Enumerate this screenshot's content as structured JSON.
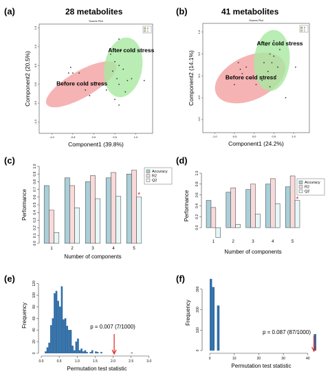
{
  "charts": [
    {
      "id": "a",
      "panel_label": "(a)",
      "title": "28 metabolites",
      "chart_data": {
        "type": "scatter",
        "plot_title": "Scores Plot",
        "xlabel": "Component1 (39.8%)",
        "ylabel": "Component2 (20.5%)",
        "xticks": [
          "-1.0",
          "-0.5",
          "0.0",
          "0.5",
          "1.0"
        ],
        "yticks": [
          "-1.0",
          "-0.5",
          "0.0",
          "0.5",
          "1.0",
          "1.5"
        ],
        "xlim": [
          -1.3,
          1.4
        ],
        "ylim": [
          -1.3,
          1.6
        ],
        "legend": [
          "0",
          "1"
        ],
        "groups": [
          {
            "name": "Before cold stress",
            "color": "#f4a0a0",
            "ellipse": {
              "cx": -0.3,
              "cy": 0.0,
              "rx": 0.95,
              "ry": 0.35,
              "angle": -30
            },
            "points": [
              [
                -0.55,
                0.45
              ],
              [
                -0.5,
                0.3
              ],
              [
                -0.35,
                0.3
              ],
              [
                -0.2,
                -0.15
              ],
              [
                -0.1,
                -0.3
              ],
              [
                0.05,
                0.05
              ],
              [
                0.3,
                -0.15
              ],
              [
                0.5,
                -0.4
              ],
              [
                0.6,
                -0.55
              ],
              [
                -0.6,
                0.3
              ]
            ]
          },
          {
            "name": "After cold stress",
            "color": "#a8e8a0",
            "ellipse": {
              "cx": 0.7,
              "cy": 0.45,
              "rx": 0.45,
              "ry": 0.8,
              "angle": 10
            },
            "points": [
              [
                0.4,
                0.8
              ],
              [
                0.5,
                0.6
              ],
              [
                0.6,
                0.5
              ],
              [
                0.7,
                0.4
              ],
              [
                0.8,
                0.1
              ],
              [
                0.9,
                0.15
              ],
              [
                0.6,
                0.0
              ],
              [
                0.55,
                0.15
              ],
              [
                0.75,
                -0.2
              ],
              [
                0.45,
                0.35
              ],
              [
                0.65,
                0.9
              ],
              [
                0.6,
                1.2
              ],
              [
                1.2,
                0.1
              ]
            ]
          }
        ]
      }
    },
    {
      "id": "b",
      "panel_label": "(b)",
      "title": "41 metabolites",
      "chart_data": {
        "type": "scatter",
        "plot_title": "Scores Plot",
        "xlabel": "Component1 (24.2%)",
        "ylabel": "Component2 (14.1%)",
        "xticks": [
          "-1.0",
          "-0.5",
          "0.0",
          "0.5",
          "1.0"
        ],
        "yticks": [
          "-1.0",
          "-0.5",
          "0.0",
          "0.5",
          "1.0"
        ],
        "xlim": [
          -1.3,
          1.4
        ],
        "ylim": [
          -1.3,
          1.2
        ],
        "legend": [
          "0",
          "1"
        ],
        "groups": [
          {
            "name": "Before cold stress",
            "color": "#f4a0a0",
            "ellipse": {
              "cx": -0.1,
              "cy": -0.05,
              "rx": 0.95,
              "ry": 0.5,
              "angle": -25
            },
            "points": [
              [
                -0.4,
                0.3
              ],
              [
                -0.35,
                0.15
              ],
              [
                -0.2,
                0.2
              ],
              [
                -0.1,
                -0.05
              ],
              [
                0.05,
                -0.2
              ],
              [
                -0.5,
                -0.2
              ],
              [
                0.2,
                -0.1
              ],
              [
                0.4,
                -0.25
              ],
              [
                0.8,
                -0.5
              ],
              [
                -0.3,
                0.05
              ]
            ]
          },
          {
            "name": "After cold stress",
            "color": "#a8e8a0",
            "ellipse": {
              "cx": 0.45,
              "cy": 0.35,
              "rx": 0.45,
              "ry": 0.7,
              "angle": 5
            },
            "points": [
              [
                0.3,
                0.7
              ],
              [
                0.4,
                0.5
              ],
              [
                0.5,
                0.45
              ],
              [
                0.45,
                0.3
              ],
              [
                0.6,
                0.2
              ],
              [
                0.35,
                0.1
              ],
              [
                0.55,
                0.0
              ],
              [
                0.65,
                0.6
              ],
              [
                0.5,
                0.8
              ],
              [
                1.05,
                0.2
              ],
              [
                0.25,
                0.3
              ]
            ]
          }
        ]
      }
    },
    {
      "id": "c",
      "panel_label": "(c)",
      "chart_data": {
        "type": "bar",
        "xlabel": "Number of components",
        "ylabel": "Performance",
        "categories": [
          "1",
          "2",
          "3",
          "4",
          "5"
        ],
        "ylim": [
          0,
          1.0
        ],
        "yticks": [
          "0.0",
          "0.1",
          "0.2",
          "0.3",
          "0.4",
          "0.5",
          "0.6",
          "0.7",
          "0.8",
          "0.9",
          "1.0"
        ],
        "series": [
          {
            "name": "Accuracy",
            "color": "#a9cfd8",
            "values": [
              0.75,
              0.85,
              0.8,
              0.85,
              0.9
            ]
          },
          {
            "name": "R2",
            "color": "#f8dada",
            "values": [
              0.43,
              0.75,
              0.88,
              0.92,
              0.95
            ]
          },
          {
            "name": "Q2",
            "color": "#e6f7f7",
            "values": [
              0.14,
              0.46,
              0.58,
              0.61,
              0.6
            ]
          }
        ],
        "best_marker": {
          "category": "5",
          "value": 0.63,
          "symbol": "*"
        }
      }
    },
    {
      "id": "d",
      "panel_label": "(d)",
      "chart_data": {
        "type": "bar",
        "xlabel": "Number of components",
        "ylabel": "Performance",
        "categories": [
          "1",
          "2",
          "3",
          "4",
          "5"
        ],
        "ylim": [
          -0.2,
          1.0
        ],
        "yticks": [
          "0.0",
          "0.2",
          "0.4",
          "0.6",
          "0.8",
          "1.0"
        ],
        "series": [
          {
            "name": "Accuracy",
            "color": "#a9cfd8",
            "values": [
              0.5,
              0.65,
              0.7,
              0.8,
              0.75
            ]
          },
          {
            "name": "R2",
            "color": "#f8dada",
            "values": [
              0.37,
              0.73,
              0.8,
              0.9,
              0.95
            ]
          },
          {
            "name": "Q2",
            "color": "#e6f7f7",
            "values": [
              -0.18,
              0.06,
              0.25,
              0.44,
              0.5
            ]
          }
        ],
        "best_marker": {
          "category": "5",
          "value": 0.52,
          "symbol": "*"
        }
      }
    },
    {
      "id": "e",
      "panel_label": "(e)",
      "chart_data": {
        "type": "bar",
        "subtype": "histogram",
        "xlabel": "Permutation test statistic",
        "ylabel": "Frequency",
        "xticks": [
          "0.0",
          "0.5",
          "1.0",
          "1.5",
          "2.0",
          "2.5",
          "3.0"
        ],
        "yticks": [
          "0",
          "20",
          "40",
          "60",
          "80",
          "100",
          "120"
        ],
        "xlim": [
          0,
          3.1
        ],
        "ylim": [
          0,
          130
        ],
        "bin_width": 0.05,
        "x": [
          0.1,
          0.15,
          0.2,
          0.25,
          0.3,
          0.35,
          0.4,
          0.45,
          0.5,
          0.55,
          0.6,
          0.65,
          0.7,
          0.75,
          0.8,
          0.85,
          0.9,
          0.95,
          1.0,
          1.05,
          1.1,
          1.15,
          1.2,
          1.25,
          1.35,
          1.4,
          1.5,
          1.55,
          1.65,
          2.5
        ],
        "values": [
          3,
          10,
          18,
          48,
          60,
          103,
          107,
          90,
          80,
          115,
          58,
          60,
          47,
          40,
          40,
          13,
          5,
          20,
          25,
          5,
          8,
          3,
          5,
          2,
          2,
          5,
          3,
          2,
          2,
          1
        ],
        "annotation": {
          "text": "p = 0.007 (7/1000)",
          "x": 2.03
        },
        "observed_stat": 2.03
      }
    },
    {
      "id": "f",
      "panel_label": "(f)",
      "chart_data": {
        "type": "bar",
        "subtype": "histogram",
        "xlabel": "Permutation test statistic",
        "ylabel": "Frequency",
        "xticks": [
          "0",
          "10",
          "20",
          "30",
          "40"
        ],
        "yticks": [
          "0",
          "100",
          "200",
          "300"
        ],
        "xlim": [
          -2,
          44
        ],
        "ylim": [
          0,
          370
        ],
        "bin_width": 1,
        "x": [
          0,
          1,
          3,
          42.5
        ],
        "values": [
          350,
          310,
          220,
          80
        ],
        "annotation": {
          "text": "p = 0.087 (87/1000)",
          "x": 42.5
        },
        "observed_stat": 42.5
      }
    }
  ]
}
